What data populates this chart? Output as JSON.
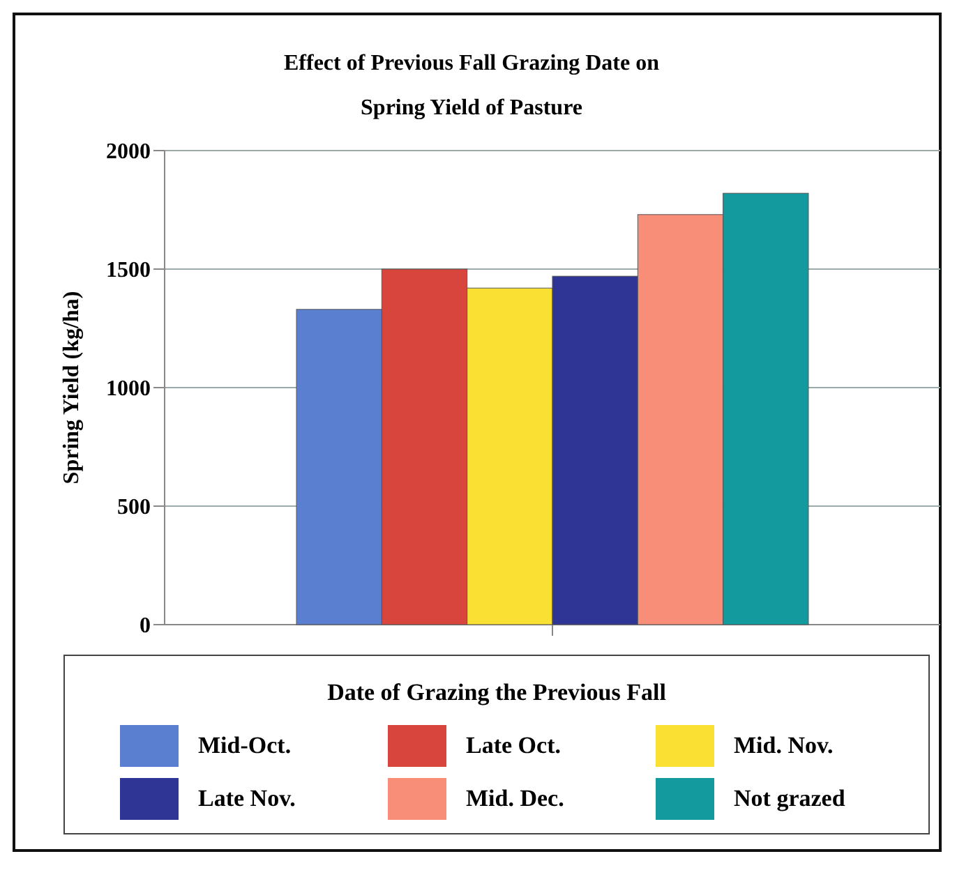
{
  "chart_data": {
    "type": "bar",
    "title": "Effect of Previous Fall Grazing Date on Spring Yield of Pasture",
    "ylabel": "Spring Yield (kg/ha)",
    "legend_title": "Date of Grazing the Previous Fall",
    "categories": [
      null
    ],
    "series": [
      {
        "name": "Mid-Oct.",
        "color": "#5b7fd0",
        "values": [
          1330
        ]
      },
      {
        "name": "Late Oct.",
        "color": "#d8453c",
        "values": [
          1500
        ]
      },
      {
        "name": "Mid. Nov.",
        "color": "#fbe034",
        "values": [
          1420
        ]
      },
      {
        "name": "Late Nov.",
        "color": "#2e3595",
        "values": [
          1470
        ]
      },
      {
        "name": "Mid. Dec.",
        "color": "#f88d78",
        "values": [
          1730
        ]
      },
      {
        "name": "Not grazed",
        "color": "#139a9e",
        "values": [
          1820
        ]
      }
    ],
    "ylim": [
      0,
      2000
    ],
    "yticks": [
      0,
      500,
      1000,
      1500,
      2000
    ],
    "grid": "y",
    "legend": "bottom"
  }
}
